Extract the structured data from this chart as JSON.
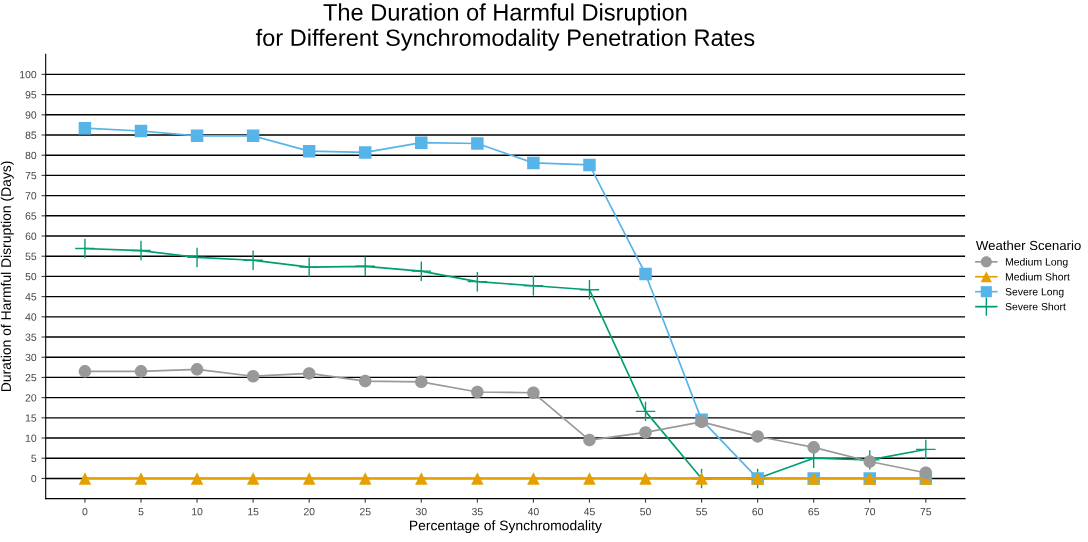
{
  "chart_data": {
    "type": "line",
    "title": "The Duration of Harmful Disruption\nfor Different Synchromodality Penetration Rates",
    "xlabel": "Percentage of Synchromodality",
    "ylabel": "Duration of Harmful Disruption (Days)",
    "legend_title": "Weather Scenario",
    "legend": "right",
    "grid": "y",
    "x": [
      0,
      5,
      10,
      15,
      20,
      25,
      30,
      35,
      40,
      45,
      50,
      55,
      60,
      65,
      70,
      75
    ],
    "xlim": [
      -3.5,
      78.5
    ],
    "xticks": [
      0,
      5,
      10,
      15,
      20,
      25,
      30,
      35,
      40,
      45,
      50,
      55,
      60,
      65,
      70,
      75
    ],
    "ylim": [
      -5,
      105
    ],
    "yticks": [
      0,
      5,
      10,
      15,
      20,
      25,
      30,
      35,
      40,
      45,
      50,
      55,
      60,
      65,
      70,
      75,
      80,
      85,
      90,
      95,
      100
    ],
    "series": [
      {
        "name": "Medium Long",
        "color": "#999999",
        "marker": "circle",
        "values": [
          26.5,
          26.5,
          27,
          25.3,
          26,
          24.1,
          23.9,
          21.4,
          21.2,
          9.5,
          11.4,
          14,
          10.4,
          7.7,
          4.2,
          1.4
        ]
      },
      {
        "name": "Medium Short",
        "color": "#e69f00",
        "marker": "triangle",
        "values": [
          0,
          0,
          0,
          0,
          0,
          0,
          0,
          0,
          0,
          0,
          0,
          0,
          0,
          0,
          0,
          0
        ]
      },
      {
        "name": "Severe Long",
        "color": "#56b4e9",
        "marker": "square",
        "values": [
          86.7,
          86,
          84.8,
          84.8,
          81,
          80.7,
          83.1,
          82.9,
          78.1,
          77.6,
          50.6,
          14.5,
          0,
          0,
          0,
          0
        ]
      },
      {
        "name": "Severe Short",
        "color": "#009e73",
        "marker": "cross",
        "values": [
          56.9,
          56.4,
          54.7,
          54,
          52.3,
          52.5,
          51.3,
          48.7,
          47.7,
          46.7,
          16.6,
          0,
          0,
          5,
          4.6,
          7.2
        ]
      }
    ]
  }
}
